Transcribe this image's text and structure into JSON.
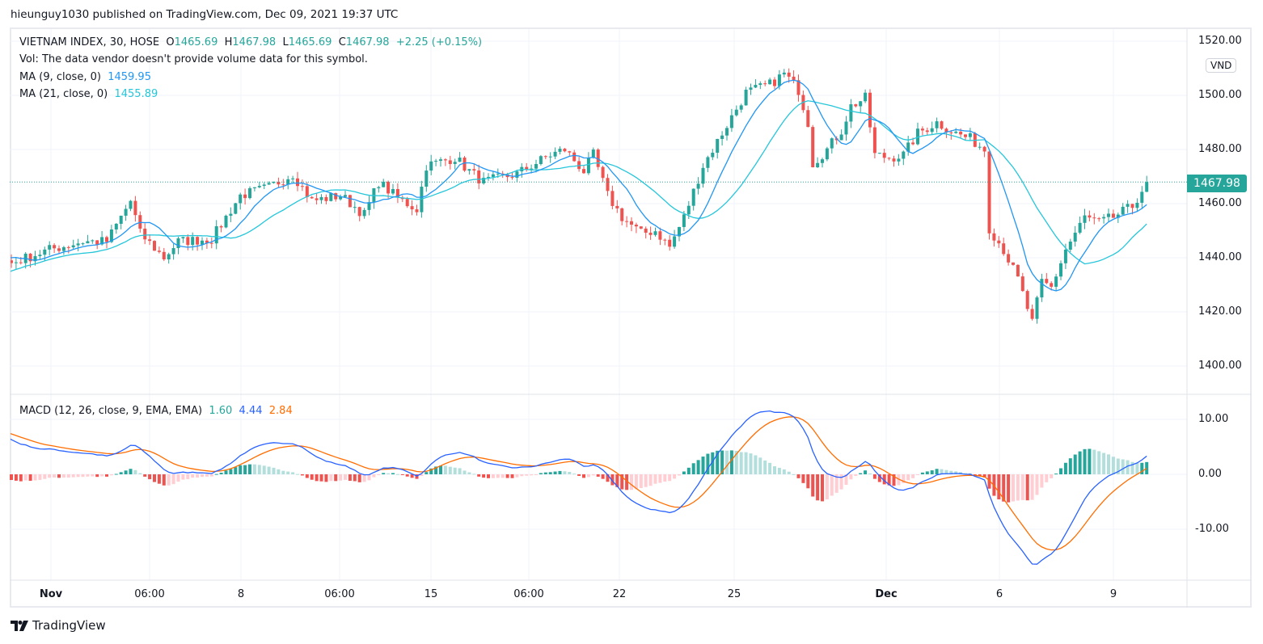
{
  "publisher": "hieunguy1030 published on TradingView.com, Dec 09, 2021 19:37 UTC",
  "header": {
    "symbol": "VIETNAM INDEX, 30, HOSE",
    "o_label": "O",
    "o": "1465.69",
    "h_label": "H",
    "h": "1467.98",
    "l_label": "L",
    "l": "1465.69",
    "c_label": "C",
    "c": "1467.98",
    "change": "+2.25 (+0.15%)",
    "vol": "Vol: The data vendor doesn't provide volume data for this symbol.",
    "ma9_label": "MA (9, close, 0)",
    "ma9_value": "1459.95",
    "ma21_label": "MA (21, close, 0)",
    "ma21_value": "1455.89",
    "macd_label": "MACD (12, 26, close, 9, EMA, EMA)",
    "macd_hist": "1.60",
    "macd_line": "4.44",
    "macd_signal": "2.84"
  },
  "currency": "VND",
  "last_price": "1467.98",
  "footer_logo": "TradingView",
  "colors": {
    "up": "#26a69a",
    "down": "#ef5350",
    "ma9": "#2196f3",
    "ma21": "#26c6da",
    "macd": "#2962ff",
    "signal": "#ff6d00",
    "hist_up_strong": "#26a69a",
    "hist_up_weak": "#b2dfdb",
    "hist_dn_strong": "#ef5350",
    "hist_dn_weak": "#ffcdd2",
    "grid": "#f0f3fa"
  },
  "chart_data": [
    {
      "type": "candlestick",
      "title": "VIETNAM INDEX, 30, HOSE",
      "ylim": [
        1390,
        1525
      ],
      "yticks": [
        "1520.00",
        "1500.00",
        "1480.00",
        "1460.00",
        "1440.00",
        "1420.00",
        "1400.00"
      ],
      "xticks": [
        "Nov",
        "06:00",
        "8",
        "06:00",
        "15",
        "06:00",
        "22",
        "25",
        "Dec",
        "6",
        "9"
      ],
      "candle_count": 239,
      "close_path_anchors": [
        [
          -45,
          1390
        ],
        [
          -20,
          1425
        ],
        [
          -5,
          1442
        ],
        [
          0,
          1438
        ],
        [
          8,
          1443
        ],
        [
          15,
          1446
        ],
        [
          20,
          1446
        ],
        [
          25,
          1461
        ],
        [
          27,
          1449
        ],
        [
          32,
          1440
        ],
        [
          35,
          1446
        ],
        [
          42,
          1447
        ],
        [
          48,
          1463
        ],
        [
          54,
          1466
        ],
        [
          59,
          1471
        ],
        [
          63,
          1461
        ],
        [
          69,
          1463
        ],
        [
          74,
          1456
        ],
        [
          77,
          1468
        ],
        [
          81,
          1462
        ],
        [
          85,
          1458
        ],
        [
          87,
          1474
        ],
        [
          93,
          1477
        ],
        [
          96,
          1472
        ],
        [
          99,
          1468
        ],
        [
          106,
          1471
        ],
        [
          113,
          1478
        ],
        [
          116,
          1480
        ],
        [
          120,
          1472
        ],
        [
          122,
          1478
        ],
        [
          125,
          1463
        ],
        [
          128,
          1455
        ],
        [
          132,
          1449
        ],
        [
          135,
          1450
        ],
        [
          138,
          1444
        ],
        [
          141,
          1455
        ],
        [
          145,
          1474
        ],
        [
          150,
          1489
        ],
        [
          154,
          1501
        ],
        [
          159,
          1504
        ],
        [
          162,
          1508
        ],
        [
          165,
          1502
        ],
        [
          167,
          1490
        ],
        [
          168,
          1475
        ],
        [
          171,
          1480
        ],
        [
          174,
          1487
        ],
        [
          176,
          1496
        ],
        [
          179,
          1499
        ],
        [
          181,
          1478
        ],
        [
          184,
          1477
        ],
        [
          187,
          1478
        ],
        [
          190,
          1486
        ],
        [
          194,
          1490
        ],
        [
          198,
          1486
        ],
        [
          201,
          1484
        ],
        [
          204,
          1480
        ],
        [
          205,
          1451
        ],
        [
          208,
          1443
        ],
        [
          211,
          1432
        ],
        [
          214,
          1416
        ],
        [
          216,
          1431
        ],
        [
          218,
          1429
        ],
        [
          221,
          1443
        ],
        [
          225,
          1455
        ],
        [
          228,
          1453
        ],
        [
          231,
          1455
        ],
        [
          235,
          1459
        ],
        [
          238,
          1467.98
        ]
      ],
      "indicators": [
        "MA 9 close",
        "MA 21 close"
      ]
    },
    {
      "type": "line",
      "title": "MACD (12, 26, close, 9, EMA, EMA)",
      "ylim": [
        -17,
        11
      ],
      "yticks": [
        "10.00",
        "0.00",
        "-10.00"
      ],
      "series": [
        {
          "name": "MACD",
          "last": 4.44
        },
        {
          "name": "Signal",
          "last": 2.84
        },
        {
          "name": "Histogram",
          "last": 1.6
        }
      ]
    }
  ]
}
